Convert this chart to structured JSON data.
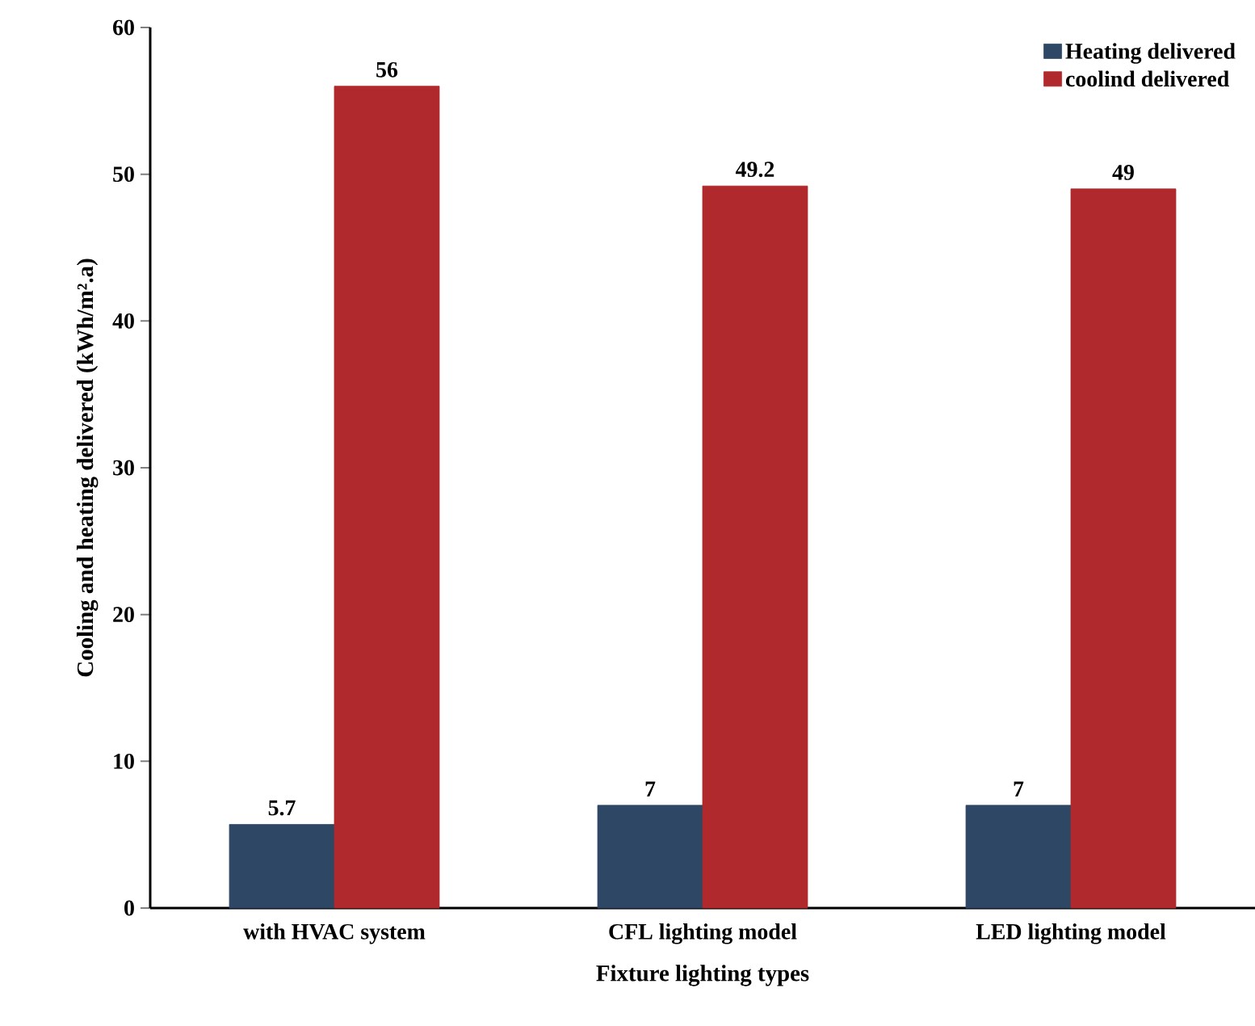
{
  "chart_data": {
    "type": "bar",
    "xlabel": "Fixture lighting types",
    "ylabel": "Cooling and heating delivered (kWh/m².a)",
    "categories": [
      "with HVAC  system",
      "CFL  lighting model",
      "LED lighting model"
    ],
    "series": [
      {
        "name": "Heating delivered",
        "color": "#2e4765",
        "values": [
          5.7,
          7,
          7
        ]
      },
      {
        "name": "coolind delivered",
        "color": "#b0292c",
        "values": [
          56,
          49.2,
          49
        ]
      }
    ],
    "ylim": [
      0,
      60
    ],
    "yticks": [
      0,
      10,
      20,
      30,
      40,
      50,
      60
    ],
    "data_labels": true,
    "legend": "top right",
    "grid": false
  }
}
